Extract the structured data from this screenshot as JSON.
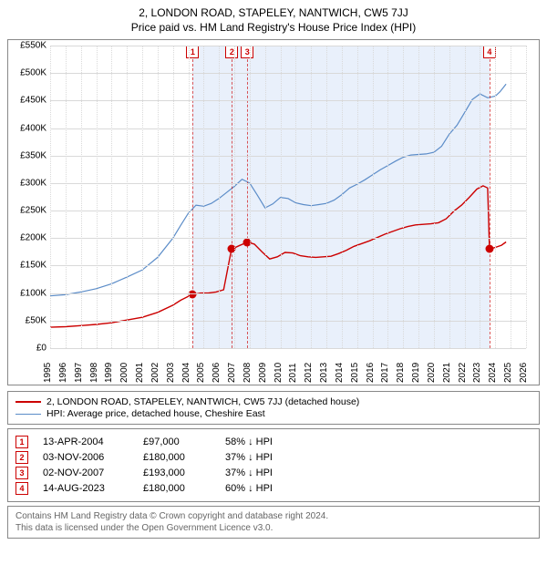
{
  "titles": {
    "main": "2, LONDON ROAD, STAPELEY, NANTWICH, CW5 7JJ",
    "sub": "Price paid vs. HM Land Registry's House Price Index (HPI)"
  },
  "chart": {
    "type": "line",
    "background_color": "#ffffff",
    "grid_color": "#d9d9d9",
    "axis_color": "#888888",
    "font_size_axis": 10,
    "x": {
      "min": 1995,
      "max": 2026,
      "ticks": [
        1995,
        1996,
        1997,
        1998,
        1999,
        2000,
        2001,
        2002,
        2003,
        2004,
        2005,
        2006,
        2007,
        2008,
        2009,
        2010,
        2011,
        2012,
        2013,
        2014,
        2015,
        2016,
        2017,
        2018,
        2019,
        2020,
        2021,
        2022,
        2023,
        2024,
        2025,
        2026
      ]
    },
    "y": {
      "min": 0,
      "max": 550000,
      "tick_step": 50000,
      "labels": [
        "£0",
        "£50K",
        "£100K",
        "£150K",
        "£200K",
        "£250K",
        "£300K",
        "£350K",
        "£400K",
        "£450K",
        "£500K",
        "£550K"
      ]
    },
    "shade_band": {
      "from": 2004.29,
      "to": 2023.62,
      "fill": "#e9f0fb"
    },
    "series": [
      {
        "id": "hpi",
        "label": "HPI: Average price, detached house, Cheshire East",
        "color": "#5b8cc8",
        "line_width": 1.2,
        "points": [
          [
            1995.0,
            95000
          ],
          [
            1996.0,
            97000
          ],
          [
            1997.0,
            102000
          ],
          [
            1998.0,
            108000
          ],
          [
            1999.0,
            117000
          ],
          [
            2000.0,
            129000
          ],
          [
            2001.0,
            142000
          ],
          [
            2002.0,
            165000
          ],
          [
            2003.0,
            200000
          ],
          [
            2003.5,
            223000
          ],
          [
            2004.0,
            245000
          ],
          [
            2004.5,
            260000
          ],
          [
            2005.0,
            258000
          ],
          [
            2005.5,
            263000
          ],
          [
            2006.0,
            272000
          ],
          [
            2006.5,
            283000
          ],
          [
            2007.0,
            294000
          ],
          [
            2007.5,
            307000
          ],
          [
            2008.0,
            300000
          ],
          [
            2008.5,
            278000
          ],
          [
            2009.0,
            255000
          ],
          [
            2009.5,
            262000
          ],
          [
            2010.0,
            274000
          ],
          [
            2010.5,
            272000
          ],
          [
            2011.0,
            264000
          ],
          [
            2011.5,
            261000
          ],
          [
            2012.0,
            259000
          ],
          [
            2012.5,
            261000
          ],
          [
            2013.0,
            263000
          ],
          [
            2013.5,
            269000
          ],
          [
            2014.0,
            279000
          ],
          [
            2014.5,
            291000
          ],
          [
            2015.0,
            298000
          ],
          [
            2015.5,
            306000
          ],
          [
            2016.0,
            315000
          ],
          [
            2016.5,
            324000
          ],
          [
            2017.0,
            332000
          ],
          [
            2017.5,
            340000
          ],
          [
            2018.0,
            347000
          ],
          [
            2018.5,
            351000
          ],
          [
            2019.0,
            352000
          ],
          [
            2019.5,
            353000
          ],
          [
            2020.0,
            356000
          ],
          [
            2020.5,
            367000
          ],
          [
            2021.0,
            389000
          ],
          [
            2021.5,
            405000
          ],
          [
            2022.0,
            428000
          ],
          [
            2022.5,
            452000
          ],
          [
            2023.0,
            462000
          ],
          [
            2023.5,
            455000
          ],
          [
            2024.0,
            458000
          ],
          [
            2024.3,
            466000
          ],
          [
            2024.7,
            480000
          ]
        ]
      },
      {
        "id": "price_paid",
        "label": "2, LONDON ROAD, STAPELEY, NANTWICH, CW5 7JJ (detached house)",
        "color": "#cc0000",
        "line_width": 1.4,
        "points": [
          [
            1995.0,
            38000
          ],
          [
            1996.0,
            39000
          ],
          [
            1997.0,
            41000
          ],
          [
            1998.0,
            43000
          ],
          [
            1999.0,
            46000
          ],
          [
            2000.0,
            51000
          ],
          [
            2001.0,
            56000
          ],
          [
            2002.0,
            65000
          ],
          [
            2003.0,
            78000
          ],
          [
            2003.5,
            87000
          ],
          [
            2004.0,
            94000
          ],
          [
            2004.29,
            97000
          ],
          [
            2004.8,
            100000
          ],
          [
            2005.3,
            100000
          ],
          [
            2005.8,
            102000
          ],
          [
            2006.3,
            106000
          ],
          [
            2006.8,
            178000
          ],
          [
            2006.84,
            180000
          ],
          [
            2007.3,
            186000
          ],
          [
            2007.8,
            192000
          ],
          [
            2007.84,
            193000
          ],
          [
            2008.3,
            189000
          ],
          [
            2008.8,
            175000
          ],
          [
            2009.3,
            162000
          ],
          [
            2009.8,
            166000
          ],
          [
            2010.3,
            174000
          ],
          [
            2010.8,
            173000
          ],
          [
            2011.3,
            168000
          ],
          [
            2011.8,
            166000
          ],
          [
            2012.3,
            165000
          ],
          [
            2012.8,
            166000
          ],
          [
            2013.3,
            167000
          ],
          [
            2013.8,
            172000
          ],
          [
            2014.3,
            178000
          ],
          [
            2014.8,
            185000
          ],
          [
            2015.3,
            190000
          ],
          [
            2015.8,
            195000
          ],
          [
            2016.3,
            201000
          ],
          [
            2016.8,
            207000
          ],
          [
            2017.3,
            212000
          ],
          [
            2017.8,
            217000
          ],
          [
            2018.3,
            221000
          ],
          [
            2018.8,
            224000
          ],
          [
            2019.3,
            225000
          ],
          [
            2019.8,
            226000
          ],
          [
            2020.3,
            228000
          ],
          [
            2020.8,
            235000
          ],
          [
            2021.3,
            249000
          ],
          [
            2021.8,
            260000
          ],
          [
            2022.3,
            274000
          ],
          [
            2022.8,
            289000
          ],
          [
            2023.2,
            295000
          ],
          [
            2023.5,
            291000
          ],
          [
            2023.62,
            180000
          ],
          [
            2024.0,
            183000
          ],
          [
            2024.4,
            187000
          ],
          [
            2024.7,
            193000
          ]
        ]
      }
    ],
    "event_markers": [
      {
        "n": 1,
        "x": 2004.29,
        "y": 97000
      },
      {
        "n": 2,
        "x": 2006.84,
        "y": 180000
      },
      {
        "n": 3,
        "x": 2007.84,
        "y": 193000
      },
      {
        "n": 4,
        "x": 2023.62,
        "y": 180000
      }
    ]
  },
  "legend": {
    "items": [
      {
        "color": "#cc0000",
        "width": 2,
        "label": "2, LONDON ROAD, STAPELEY, NANTWICH, CW5 7JJ (detached house)"
      },
      {
        "color": "#5b8cc8",
        "width": 1.2,
        "label": "HPI: Average price, detached house, Cheshire East"
      }
    ]
  },
  "events": {
    "arrow_glyph": "↓",
    "hpi_suffix": "HPI",
    "rows": [
      {
        "n": 1,
        "date": "13-APR-2004",
        "price": "£97,000",
        "pct": "58%"
      },
      {
        "n": 2,
        "date": "03-NOV-2006",
        "price": "£180,000",
        "pct": "37%"
      },
      {
        "n": 3,
        "date": "02-NOV-2007",
        "price": "£193,000",
        "pct": "37%"
      },
      {
        "n": 4,
        "date": "14-AUG-2023",
        "price": "£180,000",
        "pct": "60%"
      }
    ]
  },
  "footer": {
    "line1": "Contains HM Land Registry data © Crown copyright and database right 2024.",
    "line2": "This data is licensed under the Open Government Licence v3.0."
  }
}
